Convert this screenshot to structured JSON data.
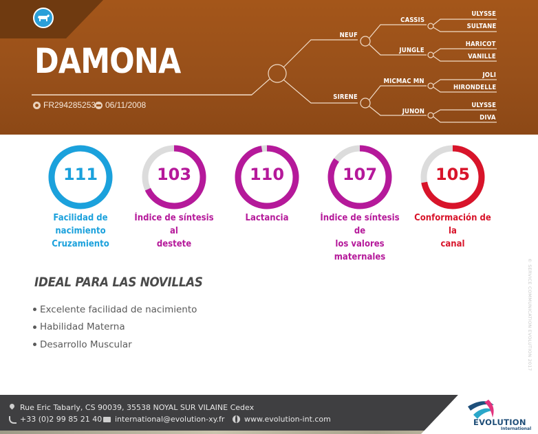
{
  "animal": {
    "name": "DAMONA",
    "registration": "FR2942852535",
    "birth_date": "06/11/2008"
  },
  "pedigree": {
    "sire": "NEUF",
    "dam": "SIRENE",
    "sire_sire": "CASSIS",
    "sire_dam": "JUNGLE",
    "dam_sire": "MICMAC MN",
    "dam_dam": "JUNON",
    "ggp": [
      "ULYSSE",
      "SULTANE",
      "HARICOT",
      "VANILLE",
      "JOLI",
      "HIRONDELLE",
      "ULYSSE",
      "DIVA"
    ]
  },
  "indexes": [
    {
      "value": "111",
      "label_lines": [
        "Facilidad de",
        "nacimiento",
        "Cruzamiento"
      ],
      "color": "#1ba1dc",
      "fraction": 1.0
    },
    {
      "value": "103",
      "label_lines": [
        "Índice de síntesis al",
        "destete"
      ],
      "color": "#b5199a",
      "fraction": 0.68
    },
    {
      "value": "110",
      "label_lines": [
        "Lactancia"
      ],
      "color": "#b5199a",
      "fraction": 0.97
    },
    {
      "value": "107",
      "label_lines": [
        "Índice de síntesis de",
        "los valores",
        "maternales"
      ],
      "color": "#b5199a",
      "fraction": 0.85
    },
    {
      "value": "105",
      "label_lines": [
        "Conformación de la",
        "canal"
      ],
      "color": "#d8142a",
      "fraction": 0.72
    }
  ],
  "ideal": {
    "title": "IDEAL PARA LAS NOVILLAS",
    "items": [
      "Excelente facilidad de nacimiento",
      "Habilidad Materna",
      "Desarrollo Muscular"
    ]
  },
  "side_credit": "© SERVICE COMMUNICATION EVOLUTION 2017",
  "footer": {
    "address": "Rue Eric Tabarly, CS 90039, 35538 NOYAL SUR VILAINE Cedex",
    "phone": "+33 (0)2 99 85 21 40",
    "email": "international@evolution-xy.fr",
    "website": "www.evolution-int.com"
  },
  "logo": {
    "word": "EVOLUTION",
    "sub": "International"
  },
  "colors": {
    "header_brown": "#9a5018",
    "footer_dark": "#3f3f41",
    "blue": "#1ba1dc",
    "magenta": "#b5199a",
    "red": "#d8142a",
    "track_grey": "#dcdcdc"
  },
  "icons": {
    "breed_badge": "cow-icon",
    "registration": "id-icon",
    "birth_date": "calendar-icon",
    "address": "pin-icon",
    "phone": "phone-icon",
    "email": "mail-icon",
    "website": "globe-icon"
  }
}
